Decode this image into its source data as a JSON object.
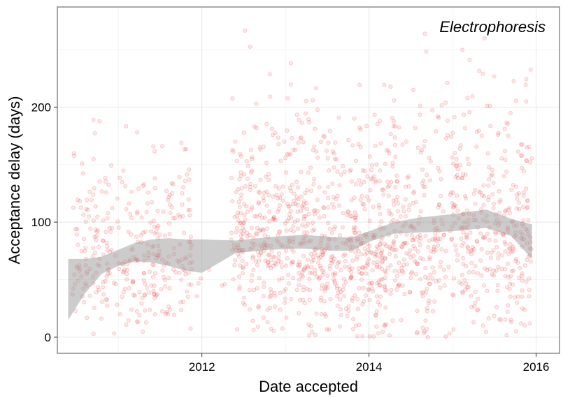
{
  "chart_data": {
    "type": "scatter",
    "title": "",
    "annotation": "Electrophoresis",
    "xlabel": "Date accepted",
    "ylabel": "Acceptance delay (days)",
    "xlim": [
      2010.27,
      2016.28
    ],
    "ylim": [
      -14,
      287
    ],
    "xticks": [
      2012,
      2014,
      2016
    ],
    "xtick_labels": [
      "2012",
      "2014",
      "2016"
    ],
    "yticks": [
      0,
      100,
      200
    ],
    "ytick_labels": [
      "0",
      "100",
      "200"
    ],
    "grid": true,
    "legend": "none",
    "points_color": "#e8272b",
    "ribbon_color": "#999999",
    "points_note": "approx. 1,700 semi-transparent points; dense clusters 2010.4–2011.9 and 2012.4–2015.95, mostly 0–200 days",
    "clusters": [
      {
        "x_range": [
          2010.45,
          2011.9
        ],
        "y_mean": 72,
        "y_sd": 38,
        "n": 340
      },
      {
        "x_range": [
          2012.35,
          2013.25
        ],
        "y_mean": 85,
        "y_sd": 50,
        "n": 360
      },
      {
        "x_range": [
          2013.25,
          2014.25
        ],
        "y_mean": 82,
        "y_sd": 50,
        "n": 420
      },
      {
        "x_range": [
          2014.25,
          2015.95
        ],
        "y_mean": 92,
        "y_sd": 55,
        "n": 580
      }
    ],
    "smooth": {
      "x": [
        2010.4,
        2010.6,
        2010.8,
        2011.0,
        2011.2,
        2011.4,
        2011.6,
        2011.8,
        2012.0,
        2012.4,
        2012.8,
        2013.2,
        2013.6,
        2013.8,
        2014.0,
        2014.3,
        2014.6,
        2015.0,
        2015.4,
        2015.7,
        2015.95
      ],
      "lower": [
        15,
        38,
        55,
        62,
        66,
        65,
        62,
        58,
        56,
        73,
        76,
        77,
        75,
        75,
        83,
        90,
        91,
        92,
        95,
        88,
        68
      ],
      "upper": [
        68,
        68,
        70,
        76,
        82,
        85,
        86,
        85,
        85,
        84,
        87,
        89,
        87,
        87,
        92,
        100,
        104,
        107,
        111,
        103,
        98
      ]
    }
  }
}
